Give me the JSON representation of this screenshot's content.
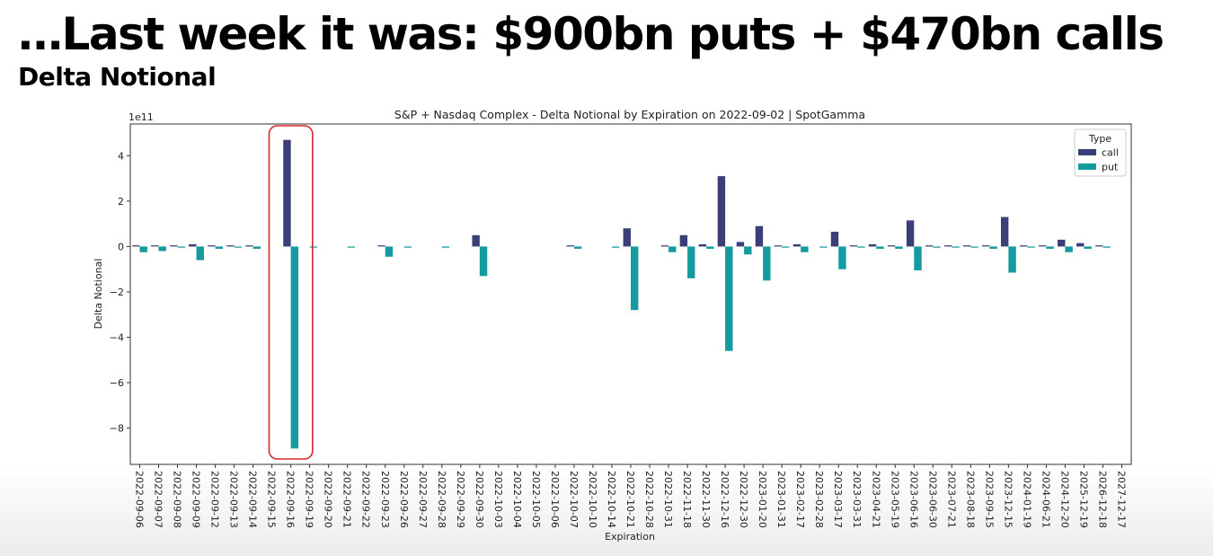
{
  "header": {
    "headline": "…Last week it was: $900bn puts + $470bn calls",
    "subheadline": "Delta Notional"
  },
  "highlight": {
    "category": "2022-09-16",
    "color": "#d62728"
  },
  "chart_data": {
    "type": "bar",
    "title": "S&P + Nasdaq Complex - Delta Notional by Expiration on 2022-09-02 | SpotGamma",
    "xlabel": "Expiration",
    "ylabel": "Delta Notional",
    "y_offset_label": "1e11",
    "ylim": [
      -9.6,
      5.4
    ],
    "yticks": [
      4,
      2,
      0,
      -2,
      -4,
      -6,
      -8
    ],
    "grid": false,
    "legend": {
      "title": "Type",
      "placement": "top-right"
    },
    "categories": [
      "2022-09-06",
      "2022-09-07",
      "2022-09-08",
      "2022-09-09",
      "2022-09-12",
      "2022-09-13",
      "2022-09-14",
      "2022-09-15",
      "2022-09-16",
      "2022-09-19",
      "2022-09-20",
      "2022-09-21",
      "2022-09-22",
      "2022-09-23",
      "2022-09-26",
      "2022-09-27",
      "2022-09-28",
      "2022-09-29",
      "2022-09-30",
      "2022-10-03",
      "2022-10-04",
      "2022-10-05",
      "2022-10-06",
      "2022-10-07",
      "2022-10-10",
      "2022-10-14",
      "2022-10-21",
      "2022-10-28",
      "2022-10-31",
      "2022-11-18",
      "2022-11-30",
      "2022-12-16",
      "2022-12-30",
      "2023-01-20",
      "2023-01-31",
      "2023-02-17",
      "2023-02-28",
      "2023-03-17",
      "2023-03-31",
      "2023-04-21",
      "2023-05-19",
      "2023-06-16",
      "2023-06-30",
      "2023-07-21",
      "2023-08-18",
      "2023-09-15",
      "2023-12-15",
      "2024-01-19",
      "2024-06-21",
      "2024-12-20",
      "2025-12-19",
      "2026-12-18",
      "2027-12-17"
    ],
    "series": [
      {
        "name": "call",
        "color": "#3b3f78",
        "values": [
          0.05,
          0.05,
          0.05,
          0.1,
          0.05,
          0.05,
          0.05,
          0,
          4.7,
          0,
          0,
          0,
          0,
          0.05,
          0,
          0,
          0,
          0,
          0.5,
          0,
          0,
          0,
          0,
          0.05,
          0,
          0,
          0.8,
          0,
          0.05,
          0.5,
          0.1,
          3.1,
          0.2,
          0.9,
          0.05,
          0.1,
          0,
          0.65,
          0.05,
          0.1,
          0.05,
          1.15,
          0.05,
          0.05,
          0.05,
          0.05,
          1.3,
          0.05,
          0.05,
          0.3,
          0.15,
          0.05,
          0
        ]
      },
      {
        "name": "put",
        "color": "#149ba0",
        "values": [
          -0.25,
          -0.2,
          -0.05,
          -0.6,
          -0.1,
          -0.05,
          -0.1,
          0,
          -8.9,
          -0.05,
          0,
          -0.05,
          0,
          -0.45,
          -0.05,
          0,
          -0.05,
          0,
          -1.3,
          0,
          0,
          0,
          0,
          -0.1,
          0,
          -0.05,
          -2.8,
          0,
          -0.25,
          -1.4,
          -0.1,
          -4.6,
          -0.35,
          -1.5,
          -0.05,
          -0.25,
          -0.05,
          -1.0,
          -0.05,
          -0.1,
          -0.1,
          -1.05,
          -0.05,
          -0.05,
          -0.05,
          -0.1,
          -1.15,
          -0.05,
          -0.1,
          -0.25,
          -0.1,
          -0.05,
          0
        ]
      }
    ]
  }
}
